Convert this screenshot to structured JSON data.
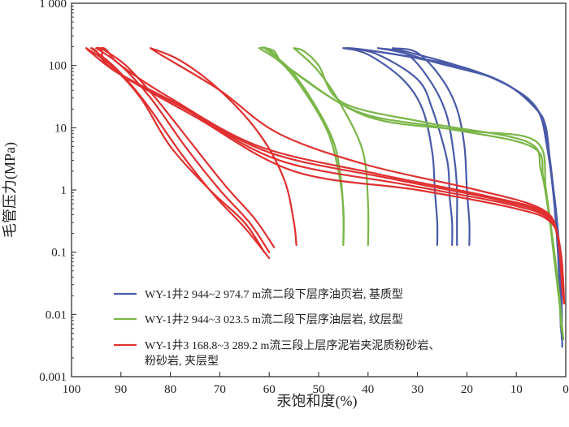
{
  "chart_data": {
    "type": "line",
    "title": "",
    "xlabel": "汞饱和度(%)",
    "ylabel": "毛管压力(MPa)",
    "x_reversed": true,
    "xlim": [
      100,
      0
    ],
    "ylim": [
      0.001,
      1000
    ],
    "y_scale": "log",
    "x_ticks": [
      "100",
      "90",
      "80",
      "70",
      "60",
      "50",
      "40",
      "30",
      "20",
      "10",
      "0"
    ],
    "y_ticks": [
      "0.001",
      "0.01",
      "0.1",
      "1",
      "10",
      "100",
      "1 000"
    ],
    "legend_position": "bottom-left",
    "series": [
      {
        "name": "WY-1井2 944~2 974.7 m流二段下层序油页岩, 基质型",
        "color": "#4a5aa8",
        "curves": [
          {
            "intrusion": [
              [
                0.7,
                0.003
              ],
              [
                1,
                0.05
              ],
              [
                2,
                0.5
              ],
              [
                3,
                2
              ],
              [
                4,
                10
              ],
              [
                6,
                20
              ],
              [
                12,
                50
              ],
              [
                22,
                100
              ],
              [
                30,
                150
              ],
              [
                35,
                190
              ]
            ],
            "extrusion": [
              [
                35,
                190
              ],
              [
                30,
                160
              ],
              [
                25,
                60
              ],
              [
                22,
                20
              ],
              [
                20.5,
                5
              ],
              [
                20,
                1
              ],
              [
                19.5,
                0.3
              ],
              [
                19.5,
                0.13
              ]
            ]
          },
          {
            "intrusion": [
              [
                0.8,
                0.004
              ],
              [
                1.2,
                0.06
              ],
              [
                2.2,
                0.6
              ],
              [
                3.2,
                3
              ],
              [
                4.5,
                12
              ],
              [
                7,
                25
              ],
              [
                14,
                60
              ],
              [
                26,
                110
              ],
              [
                33,
                160
              ],
              [
                38,
                190
              ]
            ],
            "extrusion": [
              [
                38,
                190
              ],
              [
                32,
                150
              ],
              [
                27,
                50
              ],
              [
                24,
                15
              ],
              [
                22.5,
                3
              ],
              [
                22,
                1
              ],
              [
                22,
                0.3
              ],
              [
                22,
                0.13
              ]
            ]
          },
          {
            "intrusion": [
              [
                0.9,
                0.005
              ],
              [
                1.4,
                0.08
              ],
              [
                2.4,
                0.8
              ],
              [
                3.4,
                4
              ],
              [
                5,
                15
              ],
              [
                8,
                30
              ],
              [
                16,
                70
              ],
              [
                30,
                130
              ],
              [
                40,
                175
              ],
              [
                44,
                190
              ]
            ],
            "extrusion": [
              [
                44,
                190
              ],
              [
                38,
                150
              ],
              [
                30,
                60
              ],
              [
                27,
                20
              ],
              [
                24,
                3
              ],
              [
                23.5,
                0.8
              ],
              [
                23,
                0.3
              ],
              [
                23,
                0.13
              ]
            ]
          },
          {
            "intrusion": [
              [
                1.0,
                0.006
              ],
              [
                1.6,
                0.1
              ],
              [
                2.6,
                1
              ],
              [
                3.8,
                5
              ],
              [
                5.5,
                18
              ],
              [
                10,
                40
              ],
              [
                20,
                90
              ],
              [
                32,
                140
              ],
              [
                42,
                185
              ],
              [
                45,
                190
              ]
            ],
            "extrusion": [
              [
                45,
                190
              ],
              [
                40,
                150
              ],
              [
                33,
                60
              ],
              [
                29,
                20
              ],
              [
                27,
                4
              ],
              [
                26.5,
                1
              ],
              [
                26,
                0.3
              ],
              [
                26,
                0.13
              ]
            ]
          }
        ]
      },
      {
        "name": "WY-1井2 944~3 023.5 m流二段下层序油层岩, 纹层型",
        "color": "#7ab648",
        "curves": [
          {
            "intrusion": [
              [
                0.5,
                0.004
              ],
              [
                1,
                0.01
              ],
              [
                2.5,
                0.1
              ],
              [
                4,
                1
              ],
              [
                6,
                6
              ],
              [
                20,
                9
              ],
              [
                40,
                15
              ],
              [
                55,
                80
              ],
              [
                60,
                180
              ],
              [
                62,
                190
              ]
            ],
            "extrusion": [
              [
                62,
                190
              ],
              [
                57,
                100
              ],
              [
                52,
                30
              ],
              [
                48,
                8
              ],
              [
                46,
                2
              ],
              [
                45,
                0.5
              ],
              [
                45,
                0.13
              ]
            ]
          },
          {
            "intrusion": [
              [
                0.7,
                0.005
              ],
              [
                1.3,
                0.02
              ],
              [
                2.8,
                0.2
              ],
              [
                4.5,
                1.5
              ],
              [
                7,
                5
              ],
              [
                25,
                10
              ],
              [
                42,
                18
              ],
              [
                56,
                90
              ],
              [
                59,
                170
              ],
              [
                61,
                190
              ]
            ],
            "extrusion": [
              [
                61,
                190
              ],
              [
                56,
                90
              ],
              [
                51,
                25
              ],
              [
                47,
                6
              ],
              [
                45.5,
                1.5
              ],
              [
                45,
                0.4
              ],
              [
                45,
                0.13
              ]
            ]
          },
          {
            "intrusion": [
              [
                0.9,
                0.006
              ],
              [
                1.6,
                0.03
              ],
              [
                3.2,
                0.3
              ],
              [
                5,
                2
              ],
              [
                8,
                6
              ],
              [
                28,
                12
              ],
              [
                45,
                25
              ],
              [
                50,
                100
              ],
              [
                53,
                170
              ],
              [
                55,
                190
              ]
            ],
            "extrusion": [
              [
                55,
                190
              ],
              [
                50,
                80
              ],
              [
                45,
                20
              ],
              [
                41,
                4
              ],
              [
                40,
                0.6
              ],
              [
                40,
                0.13
              ]
            ]
          }
        ]
      },
      {
        "name": "WY-1井3 168.8~3 289.2 m流三段上层序泥岩夹泥质粉砂岩、粉砂岩, 夹层型",
        "color": "#e03030",
        "curves": [
          {
            "intrusion": [
              [
                0.3,
                0.015
              ],
              [
                1,
                0.1
              ],
              [
                3,
                0.3
              ],
              [
                10,
                0.5
              ],
              [
                30,
                1
              ],
              [
                55,
                2
              ],
              [
                75,
                15
              ],
              [
                90,
                70
              ],
              [
                96,
                160
              ],
              [
                97,
                190
              ]
            ],
            "extrusion": [
              [
                97,
                190
              ],
              [
                92,
                100
              ],
              [
                86,
                30
              ],
              [
                80,
                5
              ],
              [
                72,
                1
              ],
              [
                65,
                0.3
              ],
              [
                61,
                0.1
              ]
            ]
          },
          {
            "intrusion": [
              [
                0.4,
                0.015
              ],
              [
                1.2,
                0.12
              ],
              [
                3.5,
                0.35
              ],
              [
                12,
                0.6
              ],
              [
                32,
                1.2
              ],
              [
                58,
                3
              ],
              [
                77,
                20
              ],
              [
                91,
                80
              ],
              [
                95,
                170
              ],
              [
                96,
                190
              ]
            ],
            "extrusion": [
              [
                96,
                190
              ],
              [
                91,
                90
              ],
              [
                85,
                25
              ],
              [
                78,
                4
              ],
              [
                71,
                0.8
              ],
              [
                65,
                0.25
              ],
              [
                60,
                0.08
              ]
            ]
          },
          {
            "intrusion": [
              [
                0.5,
                0.02
              ],
              [
                1.4,
                0.15
              ],
              [
                4,
                0.4
              ],
              [
                14,
                0.7
              ],
              [
                35,
                1.5
              ],
              [
                60,
                4
              ],
              [
                79,
                25
              ],
              [
                92,
                90
              ],
              [
                94,
                180
              ],
              [
                95,
                190
              ]
            ],
            "extrusion": [
              [
                95,
                190
              ],
              [
                90,
                100
              ],
              [
                84,
                30
              ],
              [
                77,
                5
              ],
              [
                70,
                1
              ],
              [
                64,
                0.3
              ],
              [
                60,
                0.1
              ]
            ]
          },
          {
            "intrusion": [
              [
                0.6,
                0.02
              ],
              [
                1.6,
                0.18
              ],
              [
                4.5,
                0.45
              ],
              [
                16,
                0.8
              ],
              [
                38,
                1.8
              ],
              [
                62,
                5
              ],
              [
                80,
                30
              ],
              [
                90,
                100
              ],
              [
                93,
                180
              ],
              [
                94,
                190
              ]
            ],
            "extrusion": [
              [
                94,
                190
              ],
              [
                89,
                100
              ],
              [
                83,
                30
              ],
              [
                76,
                6
              ],
              [
                69,
                1.2
              ],
              [
                63,
                0.35
              ],
              [
                59,
                0.12
              ]
            ]
          },
          {
            "intrusion": [
              [
                0.7,
                0.025
              ],
              [
                1.8,
                0.2
              ],
              [
                5,
                0.5
              ],
              [
                18,
                1
              ],
              [
                40,
                2.5
              ],
              [
                58,
                8
              ],
              [
                70,
                40
              ],
              [
                82,
                150
              ],
              [
                84,
                190
              ]
            ],
            "extrusion": [
              [
                84,
                190
              ],
              [
                78,
                120
              ],
              [
                70,
                40
              ],
              [
                62,
                8
              ],
              [
                57,
                1.5
              ],
              [
                55,
                0.3
              ],
              [
                54.5,
                0.13
              ]
            ]
          }
        ]
      }
    ]
  }
}
